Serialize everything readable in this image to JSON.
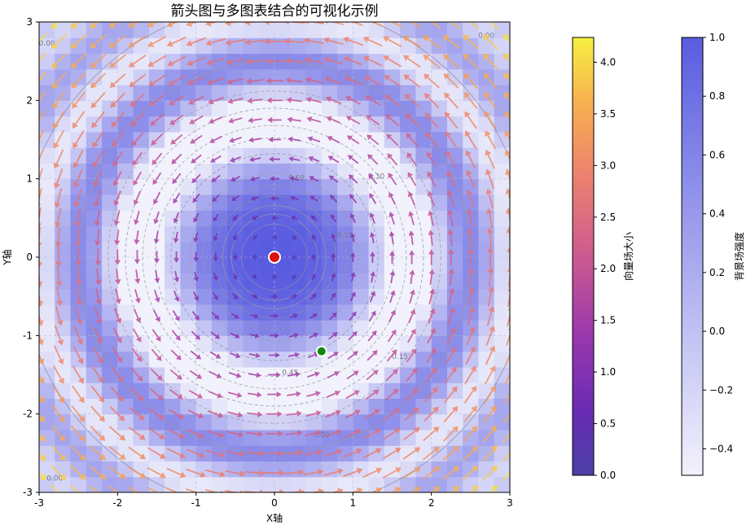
{
  "chart_data": {
    "type": "quiver",
    "title": "箭头图与多图表结合的可视化示例",
    "xlabel": "X轴",
    "ylabel": "Y轴",
    "xlim": [
      -3,
      3
    ],
    "ylim": [
      -3,
      3
    ],
    "xticks": [
      "-3",
      "-2",
      "-1",
      "0",
      "1",
      "2",
      "3"
    ],
    "yticks": [
      "-3",
      "-2",
      "-1",
      "0",
      "1",
      "2",
      "3"
    ],
    "grid": true,
    "vector_field": {
      "name": "向量场大小",
      "u_expression": "-y",
      "v_expression": "x",
      "grid_step": 0.25,
      "cmap": "plasma"
    },
    "background_field": {
      "name": "背景场强度",
      "expression": "cos(r^2)*exp(-r^2/10)",
      "cmap": "light-blue"
    },
    "contour_labels": [
      "0.00",
      "0.15",
      "0.30",
      "0.45",
      "0.60",
      "0.75",
      "0.90"
    ],
    "markers": [
      {
        "x": 0,
        "y": 0,
        "color": "#dd1111",
        "edge": "#ffffff"
      },
      {
        "x": 0.6,
        "y": -1.2,
        "color": "#118811",
        "edge": "#ffffff"
      }
    ],
    "colorbars": [
      {
        "label": "向量场大小",
        "ticks": [
          "0.0",
          "0.5",
          "1.0",
          "1.5",
          "2.0",
          "2.5",
          "3.0",
          "3.5",
          "4.0"
        ],
        "range": [
          0,
          4.24
        ]
      },
      {
        "label": "背景场强度",
        "ticks": [
          "−0.4",
          "−0.2",
          "0.0",
          "0.2",
          "0.4",
          "0.6",
          "0.8",
          "1.0"
        ],
        "range": [
          -0.49,
          1.0
        ]
      }
    ]
  }
}
